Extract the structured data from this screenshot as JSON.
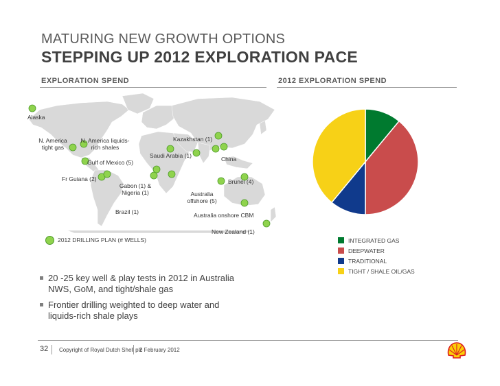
{
  "header": {
    "kicker": "MATURING NEW GROWTH OPTIONS",
    "title": "STEPPING UP 2012 EXPLORATION PACE"
  },
  "sections": {
    "left": "EXPLORATION SPEND",
    "right": "2012 EXPLORATION SPEND"
  },
  "map": {
    "labels": [
      "Alaska",
      "N. America tight gas",
      "N. America liquids-rich shales",
      "Kazakhstan (1)",
      "Gulf of Mexico (5)",
      "Saudi Arabia (1)",
      "China",
      "Fr Guiana (2)",
      "Gabon (1) & Nigeria (1)",
      "Brunei (4)",
      "Australia offshore (5)",
      "Brazil (1)",
      "Australia onshore CBM",
      "New Zealand (1)"
    ],
    "legend": "2012  DRILLING PLAN (# WELLS)",
    "colors": {
      "land": "#d9d9d9",
      "marker": "#8fd34d",
      "marker_border": "#4e9a2a"
    }
  },
  "bullets": [
    "20 -25 key well & play tests in 2012 in Australia NWS, GoM, and tight/shale gas",
    "Frontier drilling weighted to deep water and liquids-rich shale plays"
  ],
  "chart_data": {
    "type": "pie",
    "title": "2012 EXPLORATION SPEND",
    "slices": [
      {
        "name": "INTEGRATED GAS",
        "value": 11,
        "color": "#007a2f"
      },
      {
        "name": "DEEPWATER",
        "value": 39,
        "color": "#c94c4c"
      },
      {
        "name": "TRADITIONAL",
        "value": 11,
        "color": "#103a8c"
      },
      {
        "name": "TIGHT / SHALE OIL/GAS",
        "value": 39,
        "color": "#f7d117"
      }
    ],
    "start": "12 o'clock",
    "direction": "clockwise",
    "legend": "bottom-right"
  },
  "footer": {
    "page": "32",
    "copyright": "Copyright of Royal Dutch Shell plc",
    "date": "2 February 2012"
  },
  "logo": {
    "colors": {
      "shell_yellow": "#fbce07",
      "shell_red": "#dd1d21"
    }
  }
}
